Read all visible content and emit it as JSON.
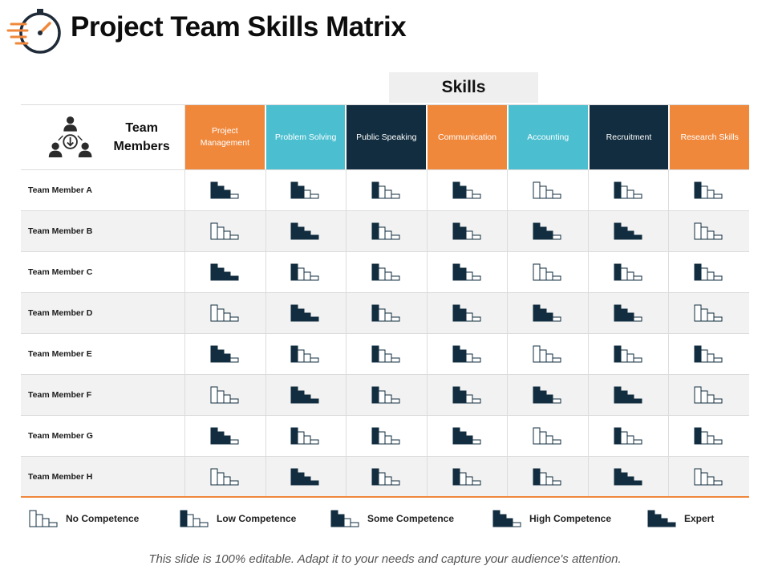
{
  "title": "Project Team Skills Matrix",
  "skills_band": "Skills",
  "members_header": "Team Members",
  "skills": [
    {
      "label": "Project Management",
      "color": "#f0883c"
    },
    {
      "label": "Problem Solving",
      "color": "#4bbfd0"
    },
    {
      "label": "Public Speaking",
      "color": "#122d3f"
    },
    {
      "label": "Communication",
      "color": "#f0883c"
    },
    {
      "label": "Accounting",
      "color": "#4bbfd0"
    },
    {
      "label": "Recruitment",
      "color": "#122d3f"
    },
    {
      "label": "Research Skills",
      "color": "#f0883c"
    }
  ],
  "members": [
    {
      "name": "Team Member A",
      "levels": [
        3,
        2,
        1,
        2,
        0,
        1,
        1
      ]
    },
    {
      "name": "Team Member B",
      "levels": [
        0,
        4,
        1,
        2,
        3,
        4,
        0
      ]
    },
    {
      "name": "Team Member C",
      "levels": [
        4,
        1,
        1,
        2,
        0,
        1,
        1
      ]
    },
    {
      "name": "Team Member D",
      "levels": [
        0,
        4,
        1,
        2,
        3,
        3,
        0
      ]
    },
    {
      "name": "Team Member E",
      "levels": [
        3,
        1,
        1,
        2,
        0,
        1,
        1
      ]
    },
    {
      "name": "Team Member F",
      "levels": [
        0,
        4,
        1,
        2,
        3,
        4,
        0
      ]
    },
    {
      "name": "Team Member G",
      "levels": [
        3,
        1,
        1,
        3,
        0,
        1,
        1
      ]
    },
    {
      "name": "Team Member H",
      "levels": [
        0,
        4,
        1,
        1,
        1,
        4,
        0
      ]
    }
  ],
  "legend": [
    {
      "label": "No Competence",
      "level": 0
    },
    {
      "label": "Low Competence",
      "level": 1
    },
    {
      "label": "Some Competence",
      "level": 2
    },
    {
      "label": "High Competence",
      "level": 3
    },
    {
      "label": "Expert",
      "level": 4
    }
  ],
  "footer": "This slide is 100% editable. Adapt it to your needs and capture your audience's attention.",
  "colors": {
    "filled": "#122d3f",
    "accent": "#f0883c"
  }
}
